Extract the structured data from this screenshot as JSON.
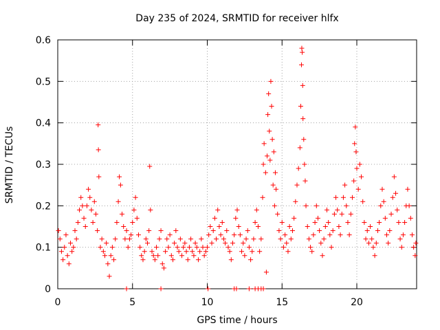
{
  "chart_data": {
    "type": "scatter",
    "title": "Day 235 of 2024, SRMTID for receiver hlfx",
    "xlabel": "GPS time / hours",
    "ylabel": "SRMTID / TECUs",
    "xlim": [
      0,
      24
    ],
    "ylim": [
      0,
      0.6
    ],
    "xticks": [
      0,
      5,
      10,
      15,
      20
    ],
    "yticks": [
      0,
      0.1,
      0.2,
      0.3,
      0.4,
      0.5,
      0.6
    ],
    "xtick_labels": [
      "0",
      "5",
      "10",
      "15",
      "20"
    ],
    "ytick_labels": [
      "0",
      "0.1",
      "0.2",
      "0.3",
      "0.4",
      "0.5",
      "0.6"
    ],
    "grid": true,
    "marker": "+",
    "color": "#ff0000",
    "series": [
      {
        "name": "SRMTID",
        "points": [
          [
            0.05,
            0.14
          ],
          [
            0.15,
            0.12
          ],
          [
            0.25,
            0.09
          ],
          [
            0.35,
            0.07
          ],
          [
            0.45,
            0.1
          ],
          [
            0.55,
            0.13
          ],
          [
            0.65,
            0.08
          ],
          [
            0.75,
            0.06
          ],
          [
            0.85,
            0.11
          ],
          [
            0.95,
            0.09
          ],
          [
            1.05,
            0.1
          ],
          [
            1.15,
            0.14
          ],
          [
            1.25,
            0.12
          ],
          [
            1.35,
            0.16
          ],
          [
            1.45,
            0.19
          ],
          [
            1.55,
            0.22
          ],
          [
            1.65,
            0.2
          ],
          [
            1.75,
            0.17
          ],
          [
            1.85,
            0.15
          ],
          [
            1.95,
            0.2
          ],
          [
            2.05,
            0.24
          ],
          [
            2.15,
            0.22
          ],
          [
            2.25,
            0.19
          ],
          [
            2.35,
            0.16
          ],
          [
            2.45,
            0.21
          ],
          [
            2.55,
            0.18
          ],
          [
            2.65,
            0.14
          ],
          [
            2.7,
            0.395
          ],
          [
            2.72,
            0.335
          ],
          [
            2.75,
            0.27
          ],
          [
            2.85,
            0.1
          ],
          [
            2.95,
            0.12
          ],
          [
            3.05,
            0.09
          ],
          [
            3.15,
            0.08
          ],
          [
            3.25,
            0.11
          ],
          [
            3.35,
            0.06
          ],
          [
            3.45,
            0.03
          ],
          [
            3.55,
            0.08
          ],
          [
            3.65,
            0.1
          ],
          [
            3.75,
            0.07
          ],
          [
            3.85,
            0.12
          ],
          [
            3.95,
            0.16
          ],
          [
            4.05,
            0.21
          ],
          [
            4.12,
            0.27
          ],
          [
            4.2,
            0.25
          ],
          [
            4.3,
            0.18
          ],
          [
            4.4,
            0.15
          ],
          [
            4.5,
            0.12
          ],
          [
            4.6,
            0.14
          ],
          [
            4.7,
            0.1
          ],
          [
            4.8,
            0.12
          ],
          [
            4.9,
            0.13
          ],
          [
            5.0,
            0.16
          ],
          [
            5.1,
            0.19
          ],
          [
            5.2,
            0.22
          ],
          [
            5.3,
            0.17
          ],
          [
            5.4,
            0.13
          ],
          [
            5.5,
            0.1
          ],
          [
            5.6,
            0.08
          ],
          [
            5.7,
            0.07
          ],
          [
            5.8,
            0.09
          ],
          [
            5.9,
            0.12
          ],
          [
            6.0,
            0.11
          ],
          [
            6.1,
            0.14
          ],
          [
            6.15,
            0.295
          ],
          [
            6.2,
            0.19
          ],
          [
            6.3,
            0.09
          ],
          [
            6.4,
            0.08
          ],
          [
            6.5,
            0.07
          ],
          [
            6.6,
            0.1
          ],
          [
            6.7,
            0.08
          ],
          [
            6.8,
            0.12
          ],
          [
            6.9,
            0.14
          ],
          [
            7.0,
            0.06
          ],
          [
            7.1,
            0.05
          ],
          [
            7.2,
            0.09
          ],
          [
            7.3,
            0.12
          ],
          [
            7.4,
            0.1
          ],
          [
            7.5,
            0.13
          ],
          [
            7.6,
            0.08
          ],
          [
            7.7,
            0.07
          ],
          [
            7.8,
            0.11
          ],
          [
            7.9,
            0.14
          ],
          [
            8.0,
            0.1
          ],
          [
            8.1,
            0.09
          ],
          [
            8.2,
            0.12
          ],
          [
            8.3,
            0.08
          ],
          [
            8.4,
            0.1
          ],
          [
            8.5,
            0.11
          ],
          [
            8.6,
            0.09
          ],
          [
            8.7,
            0.07
          ],
          [
            8.8,
            0.1
          ],
          [
            8.9,
            0.12
          ],
          [
            9.0,
            0.09
          ],
          [
            9.1,
            0.08
          ],
          [
            9.2,
            0.11
          ],
          [
            9.3,
            0.1
          ],
          [
            9.4,
            0.07
          ],
          [
            9.5,
            0.09
          ],
          [
            9.6,
            0.12
          ],
          [
            9.7,
            0.1
          ],
          [
            9.8,
            0.08
          ],
          [
            9.9,
            0.09
          ],
          [
            10.0,
            0.1
          ],
          [
            10.1,
            0.13
          ],
          [
            10.2,
            0.15
          ],
          [
            10.3,
            0.11
          ],
          [
            10.4,
            0.14
          ],
          [
            10.5,
            0.17
          ],
          [
            10.6,
            0.12
          ],
          [
            10.7,
            0.19
          ],
          [
            10.8,
            0.15
          ],
          [
            10.9,
            0.13
          ],
          [
            11.0,
            0.16
          ],
          [
            11.1,
            0.12
          ],
          [
            11.2,
            0.11
          ],
          [
            11.3,
            0.14
          ],
          [
            11.4,
            0.1
          ],
          [
            11.5,
            0.09
          ],
          [
            11.6,
            0.07
          ],
          [
            11.7,
            0.11
          ],
          [
            11.8,
            0.13
          ],
          [
            11.9,
            0.17
          ],
          [
            12.0,
            0.19
          ],
          [
            12.1,
            0.15
          ],
          [
            12.2,
            0.13
          ],
          [
            12.3,
            0.09
          ],
          [
            12.4,
            0.11
          ],
          [
            12.5,
            0.08
          ],
          [
            12.6,
            0.12
          ],
          [
            12.7,
            0.14
          ],
          [
            12.8,
            0.1
          ],
          [
            12.9,
            0.07
          ],
          [
            13.0,
            0.09
          ],
          [
            13.1,
            0.12
          ],
          [
            13.2,
            0.16
          ],
          [
            13.3,
            0.19
          ],
          [
            13.4,
            0.15
          ],
          [
            13.5,
            0.09
          ],
          [
            13.6,
            0.12
          ],
          [
            13.7,
            0.22
          ],
          [
            13.75,
            0.3
          ],
          [
            13.8,
            0.35
          ],
          [
            13.9,
            0.28
          ],
          [
            13.95,
            0.04
          ],
          [
            14.0,
            0.32
          ],
          [
            14.05,
            0.42
          ],
          [
            14.1,
            0.47
          ],
          [
            14.15,
            0.38
          ],
          [
            14.2,
            0.31
          ],
          [
            14.25,
            0.5
          ],
          [
            14.3,
            0.44
          ],
          [
            14.35,
            0.36
          ],
          [
            14.4,
            0.25
          ],
          [
            14.45,
            0.33
          ],
          [
            14.5,
            0.2
          ],
          [
            14.55,
            0.28
          ],
          [
            14.6,
            0.24
          ],
          [
            14.7,
            0.18
          ],
          [
            14.8,
            0.14
          ],
          [
            14.9,
            0.12
          ],
          [
            15.0,
            0.16
          ],
          [
            15.1,
            0.1
          ],
          [
            15.2,
            0.13
          ],
          [
            15.3,
            0.11
          ],
          [
            15.4,
            0.09
          ],
          [
            15.5,
            0.15
          ],
          [
            15.6,
            0.12
          ],
          [
            15.7,
            0.14
          ],
          [
            15.8,
            0.17
          ],
          [
            15.9,
            0.21
          ],
          [
            16.0,
            0.25
          ],
          [
            16.1,
            0.29
          ],
          [
            16.2,
            0.34
          ],
          [
            16.25,
            0.44
          ],
          [
            16.3,
            0.54
          ],
          [
            16.32,
            0.58
          ],
          [
            16.35,
            0.57
          ],
          [
            16.38,
            0.49
          ],
          [
            16.4,
            0.41
          ],
          [
            16.45,
            0.36
          ],
          [
            16.5,
            0.3
          ],
          [
            16.55,
            0.26
          ],
          [
            16.6,
            0.2
          ],
          [
            16.7,
            0.15
          ],
          [
            16.8,
            0.12
          ],
          [
            16.9,
            0.1
          ],
          [
            17.0,
            0.09
          ],
          [
            17.1,
            0.13
          ],
          [
            17.2,
            0.16
          ],
          [
            17.3,
            0.2
          ],
          [
            17.4,
            0.17
          ],
          [
            17.5,
            0.14
          ],
          [
            17.6,
            0.11
          ],
          [
            17.7,
            0.08
          ],
          [
            17.8,
            0.12
          ],
          [
            17.9,
            0.15
          ],
          [
            18.0,
            0.19
          ],
          [
            18.1,
            0.16
          ],
          [
            18.2,
            0.13
          ],
          [
            18.3,
            0.1
          ],
          [
            18.4,
            0.14
          ],
          [
            18.5,
            0.18
          ],
          [
            18.6,
            0.22
          ],
          [
            18.7,
            0.19
          ],
          [
            18.8,
            0.15
          ],
          [
            18.9,
            0.13
          ],
          [
            19.0,
            0.18
          ],
          [
            19.1,
            0.22
          ],
          [
            19.2,
            0.25
          ],
          [
            19.3,
            0.2
          ],
          [
            19.4,
            0.16
          ],
          [
            19.5,
            0.13
          ],
          [
            19.6,
            0.18
          ],
          [
            19.7,
            0.22
          ],
          [
            19.8,
            0.26
          ],
          [
            19.85,
            0.35
          ],
          [
            19.9,
            0.39
          ],
          [
            19.95,
            0.33
          ],
          [
            20.0,
            0.29
          ],
          [
            20.1,
            0.24
          ],
          [
            20.2,
            0.3
          ],
          [
            20.3,
            0.27
          ],
          [
            20.4,
            0.21
          ],
          [
            20.5,
            0.16
          ],
          [
            20.6,
            0.12
          ],
          [
            20.7,
            0.14
          ],
          [
            20.8,
            0.11
          ],
          [
            20.9,
            0.15
          ],
          [
            21.0,
            0.12
          ],
          [
            21.1,
            0.1
          ],
          [
            21.2,
            0.08
          ],
          [
            21.3,
            0.11
          ],
          [
            21.4,
            0.14
          ],
          [
            21.5,
            0.16
          ],
          [
            21.6,
            0.2
          ],
          [
            21.7,
            0.24
          ],
          [
            21.8,
            0.21
          ],
          [
            21.9,
            0.17
          ],
          [
            22.0,
            0.13
          ],
          [
            22.1,
            0.11
          ],
          [
            22.2,
            0.14
          ],
          [
            22.3,
            0.18
          ],
          [
            22.4,
            0.22
          ],
          [
            22.5,
            0.27
          ],
          [
            22.6,
            0.23
          ],
          [
            22.7,
            0.19
          ],
          [
            22.8,
            0.16
          ],
          [
            22.9,
            0.12
          ],
          [
            23.0,
            0.1
          ],
          [
            23.1,
            0.13
          ],
          [
            23.2,
            0.16
          ],
          [
            23.3,
            0.2
          ],
          [
            23.4,
            0.24
          ],
          [
            23.5,
            0.2
          ],
          [
            23.6,
            0.17
          ],
          [
            23.7,
            0.13
          ],
          [
            23.8,
            0.1
          ],
          [
            23.9,
            0.08
          ],
          [
            23.95,
            0.11
          ],
          [
            4.6,
            0.0
          ],
          [
            6.9,
            0.0
          ],
          [
            10.05,
            0.0
          ],
          [
            11.8,
            0.0
          ],
          [
            11.95,
            0.0
          ],
          [
            12.8,
            0.0
          ],
          [
            13.2,
            0.0
          ],
          [
            13.4,
            0.0
          ],
          [
            13.6,
            0.0
          ],
          [
            13.75,
            0.0
          ]
        ]
      }
    ]
  }
}
